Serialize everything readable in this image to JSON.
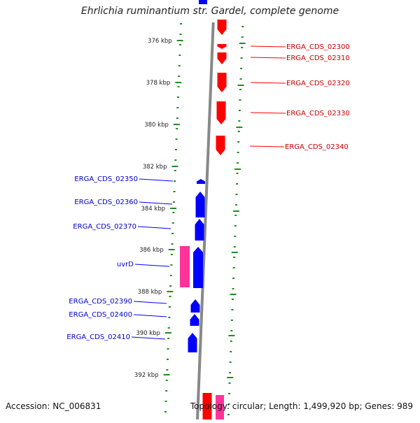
{
  "title": "Ehrlichia ruminantium str. Gardel, complete genome",
  "footer": {
    "accession": "Accession: NC_006831",
    "topology": "Topology: circular; Length: 1,499,920 bp; Genes: 989"
  },
  "colors": {
    "forward_gene": "#ff0000",
    "reverse_gene": "#0000ff",
    "rna_gene": "#ff3399",
    "backbone": "#888888",
    "tick": "#228b22"
  },
  "ticks": [
    "376 kbp",
    "378 kbp",
    "380 kbp",
    "382 kbp",
    "384 kbp",
    "386 kbp",
    "388 kbp",
    "390 kbp",
    "392 kbp"
  ],
  "labels_right": [
    "ERGA_CDS_02300",
    "ERGA_CDS_02310",
    "ERGA_CDS_02320",
    "ERGA_CDS_02330",
    "ERGA_CDS_02340"
  ],
  "labels_left": [
    "ERGA_CDS_02350",
    "ERGA_CDS_02360",
    "ERGA_CDS_02370",
    "uvrD",
    "ERGA_CDS_02390",
    "ERGA_CDS_02400",
    "ERGA_CDS_02410"
  ]
}
